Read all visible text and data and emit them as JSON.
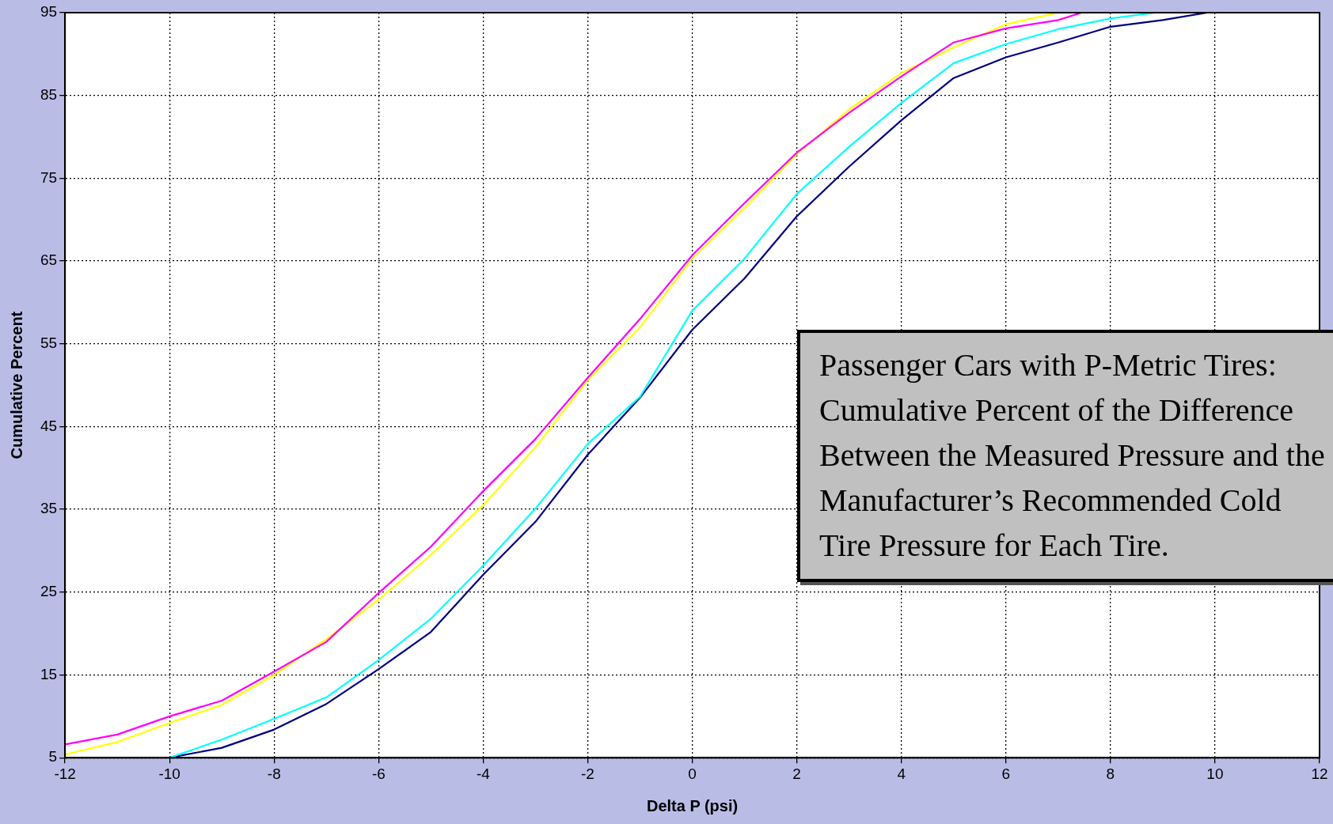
{
  "chart_data": {
    "type": "line",
    "xlabel": "Delta P (psi)",
    "ylabel": "Cumulative Percent",
    "annotations": [
      "Passenger Cars with P-Metric Tires: Cumulative Percent of the Difference Between the Measured Pressure and the Manufacturer’s Recommended Cold Tire Pressure for Each Tire."
    ],
    "series": [
      {
        "color": "#ff00ff",
        "x": [
          -12,
          -11,
          -10,
          -9,
          -8,
          -7,
          -6,
          -5,
          -4,
          -3,
          -2,
          -1,
          0,
          1,
          2,
          3,
          4,
          5,
          6,
          7,
          7.45
        ],
        "values": [
          6.6,
          7.8,
          10.0,
          11.9,
          15.4,
          19.0,
          24.9,
          30.5,
          37.2,
          43.5,
          50.9,
          58.0,
          65.7,
          72.0,
          78.1,
          82.9,
          87.3,
          91.4,
          93.1,
          94.1,
          95
        ]
      },
      {
        "color": "#ffff00",
        "x": [
          -12,
          -11,
          -10,
          -9,
          -8,
          -7,
          -6,
          -5,
          -4,
          -3,
          -2,
          -1,
          0,
          1,
          2,
          3,
          4,
          5,
          6,
          7
        ],
        "values": [
          5.4,
          6.9,
          9.2,
          11.4,
          15.0,
          19.3,
          24.1,
          29.5,
          35.5,
          42.5,
          50.6,
          57.0,
          65.3,
          71.4,
          77.9,
          83.3,
          87.7,
          90.8,
          93.6,
          95
        ]
      },
      {
        "color": "#00ffff",
        "x": [
          -10,
          -9,
          -8,
          -7,
          -6,
          -5,
          -4,
          -3,
          -2,
          -1,
          0,
          1,
          2,
          3,
          4,
          5,
          6,
          7,
          8,
          8.86
        ],
        "values": [
          5,
          7.2,
          9.7,
          12.3,
          16.8,
          21.8,
          28.2,
          35.1,
          42.9,
          48.6,
          59.0,
          65.3,
          73.1,
          78.8,
          84.1,
          88.9,
          91.2,
          93.0,
          94.3,
          95
        ]
      },
      {
        "color": "#000080",
        "x": [
          -10,
          -9,
          -8,
          -7,
          -6,
          -5,
          -4,
          -3,
          -2,
          -1,
          0,
          1,
          2,
          3,
          4,
          5,
          6,
          7,
          8,
          9,
          9.85
        ],
        "values": [
          5,
          6.2,
          8.4,
          11.5,
          15.7,
          20.2,
          27.1,
          33.5,
          41.6,
          48.5,
          56.7,
          62.9,
          70.4,
          76.4,
          82.0,
          87.1,
          89.6,
          91.4,
          93.3,
          94.1,
          95
        ]
      }
    ],
    "xlim": [
      -12,
      12
    ],
    "xticks": [
      -12,
      -10,
      -8,
      -6,
      -4,
      -2,
      0,
      2,
      4,
      6,
      8,
      10,
      12
    ],
    "ylim": [
      5,
      95
    ],
    "yticks": [
      5,
      15,
      25,
      35,
      45,
      55,
      65,
      75,
      85,
      95
    ],
    "grid": true
  }
}
